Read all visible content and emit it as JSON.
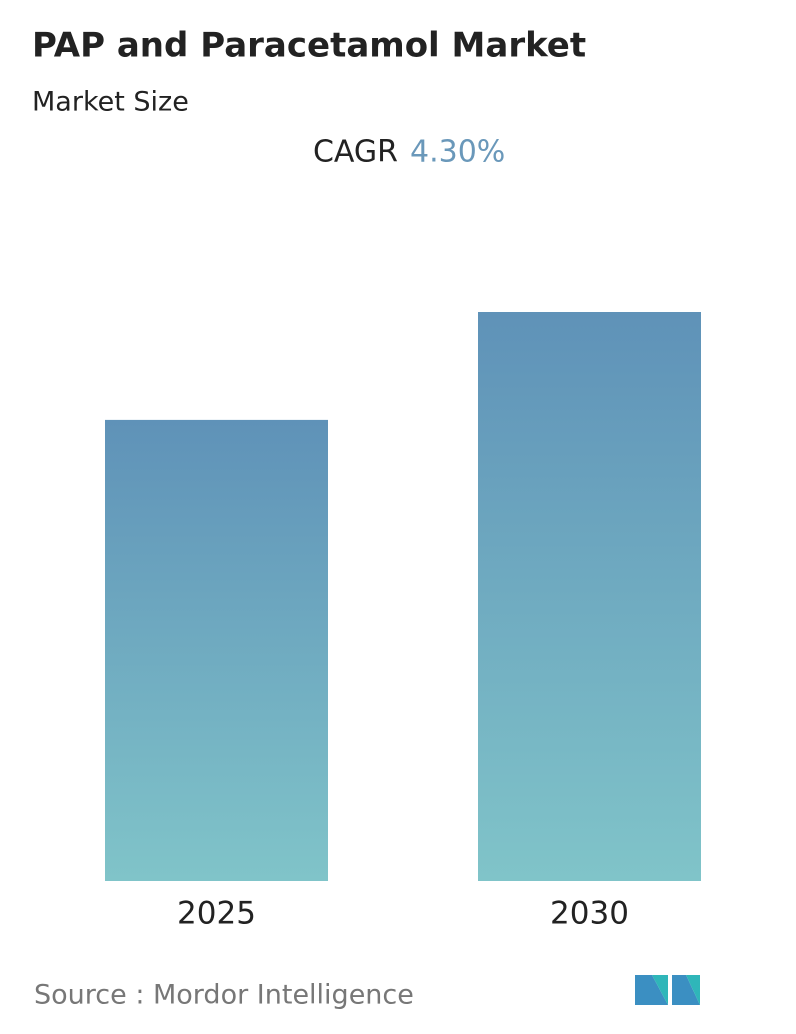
{
  "chart_data": {
    "type": "bar",
    "title": "PAP and Paracetamol Market",
    "subtitle": "Market Size",
    "cagr_label": "CAGR",
    "cagr_value": "4.30%",
    "categories": [
      "2025",
      "2030"
    ],
    "values": [
      1.0,
      1.234
    ],
    "source": "Source :  Mordor Intelligence"
  }
}
